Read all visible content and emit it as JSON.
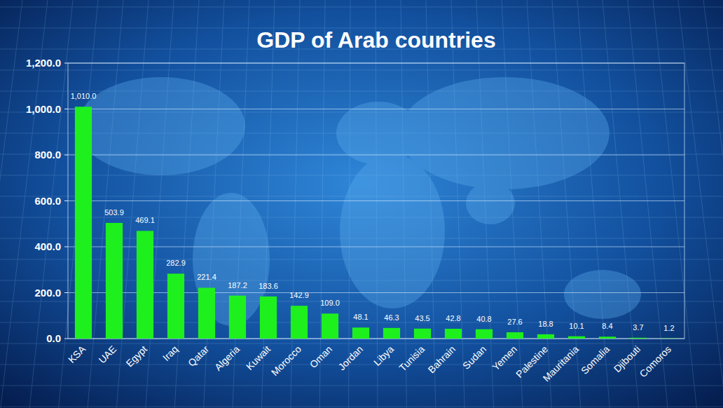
{
  "chart_data": {
    "type": "bar",
    "title": "GDP of Arab countries",
    "categories": [
      "KSA",
      "UAE",
      "Egypt",
      "Iraq",
      "Qatar",
      "Algeria",
      "Kuwait",
      "Morocco",
      "Oman",
      "Jordan",
      "Libya",
      "Tunisia",
      "Bahrain",
      "Sudan",
      "Yemen",
      "Palestine",
      "Mauritania",
      "Somalia",
      "Djibouti",
      "Comoros"
    ],
    "values": [
      1010.0,
      503.9,
      469.1,
      282.9,
      221.4,
      187.2,
      183.6,
      142.9,
      109.0,
      48.1,
      46.3,
      43.5,
      42.8,
      40.8,
      27.6,
      18.8,
      10.1,
      8.4,
      3.7,
      1.2
    ],
    "value_labels": [
      "1,010.0",
      "503.9",
      "469.1",
      "282.9",
      "221.4",
      "187.2",
      "183.6",
      "142.9",
      "109.0",
      "48.1",
      "46.3",
      "43.5",
      "42.8",
      "40.8",
      "27.6",
      "18.8",
      "10.1",
      "8.4",
      "3.7",
      "1.2"
    ],
    "color": "#1ef01e",
    "ylim": [
      0,
      1200
    ],
    "yticks": [
      {
        "value": 0,
        "label": "0.0"
      },
      {
        "value": 200,
        "label": "200.0"
      },
      {
        "value": 400,
        "label": "400.0"
      },
      {
        "value": 600,
        "label": "600.0"
      },
      {
        "value": 800,
        "label": "800.0"
      },
      {
        "value": 1000,
        "label": "1,000.0"
      },
      {
        "value": 1200,
        "label": "1,200.0"
      }
    ],
    "grid": true,
    "data_labels": true
  }
}
